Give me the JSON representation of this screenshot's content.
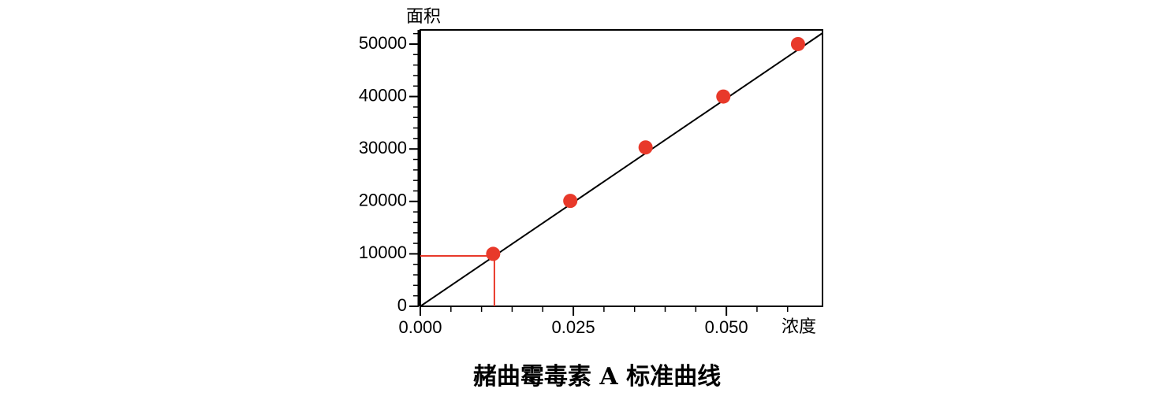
{
  "chart_data": {
    "type": "scatter",
    "title": "赭曲霉毒素 A 标准曲线",
    "x_label": "浓度",
    "y_label": "面积",
    "xlim": [
      0,
      0.0657
    ],
    "ylim": [
      0,
      52700
    ],
    "xticks": [
      {
        "value": 0,
        "label": "0.000"
      },
      {
        "value": 0.025,
        "label": "0.025"
      },
      {
        "value": 0.05,
        "label": "0.050"
      }
    ],
    "xminorticks": [
      0.005,
      0.01,
      0.015,
      0.02,
      0.03,
      0.035,
      0.04,
      0.045,
      0.055,
      0.06
    ],
    "yticks": [
      0,
      10000,
      20000,
      30000,
      40000,
      50000
    ],
    "yminorticks": [
      2000,
      4000,
      6000,
      8000,
      12000,
      14000,
      16000,
      18000,
      22000,
      24000,
      26000,
      28000,
      32000,
      34000,
      36000,
      38000,
      42000,
      44000,
      46000,
      48000,
      52000
    ],
    "series": [
      {
        "color": "#e8392a",
        "x": [
          0.0119,
          0.0245,
          0.0368,
          0.0495,
          0.0617
        ],
        "values": [
          10000,
          20100,
          30300,
          40000,
          50000
        ]
      }
    ],
    "fit_line": {
      "color": "#000000",
      "x": [
        0,
        0.0657
      ],
      "values": [
        0,
        52100
      ]
    },
    "reference": {
      "color": "#e8392a",
      "x": 0.0121,
      "y": 9600
    }
  }
}
